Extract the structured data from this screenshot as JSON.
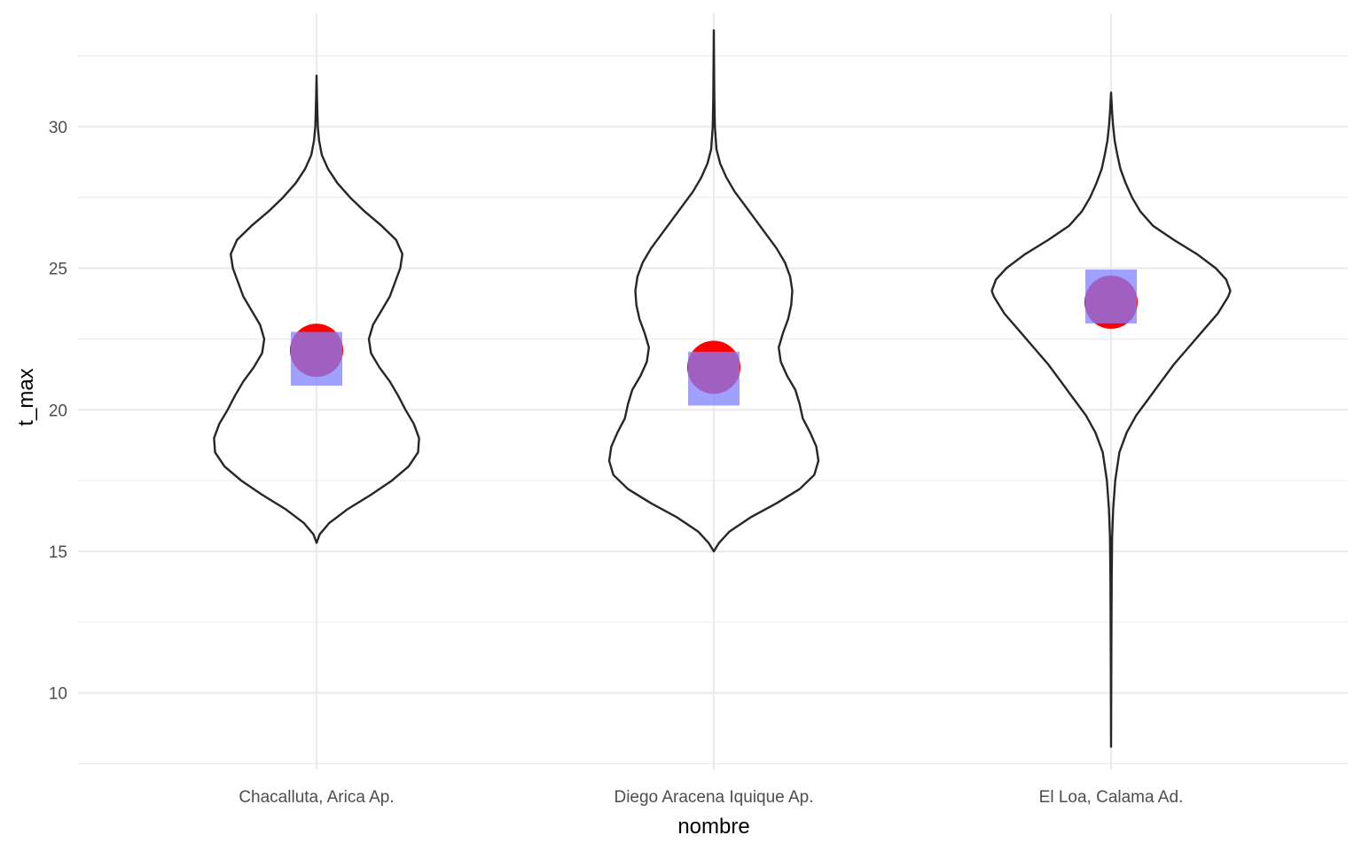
{
  "chart_data": {
    "type": "violin",
    "xlabel": "nombre",
    "ylabel": "t_max",
    "ylim": [
      7.3,
      34
    ],
    "y_ticks": [
      10,
      15,
      20,
      25,
      30
    ],
    "grid": true,
    "categories": [
      "Chacalluta, Arica Ap.",
      "Diego Aracena Iquique Ap.",
      "El Loa, Calama Ad."
    ],
    "overlay": {
      "point": {
        "shape": "circle",
        "color": "#ff0000",
        "values": [
          22.1,
          21.5,
          23.8
        ]
      },
      "box": {
        "shape": "square",
        "color": "#8080ff",
        "values": [
          21.8,
          21.1,
          24.0
        ]
      },
      "box_halfheight": 0.95
    },
    "violins": [
      {
        "name": "Chacalluta, Arica Ap.",
        "min": 15.3,
        "max": 31.8,
        "profile": [
          [
            15.3,
            0
          ],
          [
            15.6,
            0.03
          ],
          [
            16.0,
            0.12
          ],
          [
            16.5,
            0.3
          ],
          [
            17.0,
            0.52
          ],
          [
            17.5,
            0.72
          ],
          [
            18.0,
            0.88
          ],
          [
            18.5,
            0.97
          ],
          [
            19.0,
            0.98
          ],
          [
            19.5,
            0.93
          ],
          [
            20.0,
            0.85
          ],
          [
            20.5,
            0.78
          ],
          [
            21.0,
            0.7
          ],
          [
            21.5,
            0.6
          ],
          [
            22.0,
            0.52
          ],
          [
            22.5,
            0.5
          ],
          [
            23.0,
            0.54
          ],
          [
            23.5,
            0.62
          ],
          [
            24.0,
            0.7
          ],
          [
            24.5,
            0.75
          ],
          [
            25.0,
            0.8
          ],
          [
            25.5,
            0.82
          ],
          [
            26.0,
            0.76
          ],
          [
            26.5,
            0.62
          ],
          [
            27.0,
            0.46
          ],
          [
            27.5,
            0.32
          ],
          [
            28.0,
            0.2
          ],
          [
            28.5,
            0.11
          ],
          [
            29.0,
            0.05
          ],
          [
            29.5,
            0.025
          ],
          [
            30.0,
            0.012
          ],
          [
            31.0,
            0.004
          ],
          [
            31.8,
            0
          ]
        ]
      },
      {
        "name": "Diego Aracena Iquique Ap.",
        "min": 15.0,
        "max": 33.4,
        "profile": [
          [
            15.0,
            0
          ],
          [
            15.3,
            0.05
          ],
          [
            15.7,
            0.15
          ],
          [
            16.2,
            0.35
          ],
          [
            16.7,
            0.6
          ],
          [
            17.2,
            0.82
          ],
          [
            17.7,
            0.96
          ],
          [
            18.2,
            1.0
          ],
          [
            18.7,
            0.98
          ],
          [
            19.2,
            0.92
          ],
          [
            19.7,
            0.85
          ],
          [
            20.2,
            0.82
          ],
          [
            20.7,
            0.78
          ],
          [
            21.2,
            0.7
          ],
          [
            21.7,
            0.64
          ],
          [
            22.2,
            0.62
          ],
          [
            22.7,
            0.66
          ],
          [
            23.2,
            0.71
          ],
          [
            23.7,
            0.74
          ],
          [
            24.2,
            0.75
          ],
          [
            24.7,
            0.73
          ],
          [
            25.2,
            0.68
          ],
          [
            25.7,
            0.6
          ],
          [
            26.2,
            0.5
          ],
          [
            26.7,
            0.4
          ],
          [
            27.2,
            0.3
          ],
          [
            27.7,
            0.2
          ],
          [
            28.2,
            0.12
          ],
          [
            28.7,
            0.06
          ],
          [
            29.2,
            0.025
          ],
          [
            30.0,
            0.01
          ],
          [
            31.0,
            0.005
          ],
          [
            33.4,
            0
          ]
        ]
      },
      {
        "name": "El Loa, Calama Ad.",
        "min": 8.1,
        "max": 31.2,
        "profile": [
          [
            8.1,
            0
          ],
          [
            10.0,
            0.002
          ],
          [
            12.0,
            0.003
          ],
          [
            14.0,
            0.006
          ],
          [
            15.5,
            0.01
          ],
          [
            16.5,
            0.02
          ],
          [
            17.5,
            0.04
          ],
          [
            18.5,
            0.08
          ],
          [
            19.2,
            0.15
          ],
          [
            19.8,
            0.24
          ],
          [
            20.4,
            0.36
          ],
          [
            21.0,
            0.48
          ],
          [
            21.6,
            0.6
          ],
          [
            22.2,
            0.74
          ],
          [
            22.8,
            0.88
          ],
          [
            23.4,
            1.02
          ],
          [
            24.0,
            1.12
          ],
          [
            24.2,
            1.14
          ],
          [
            24.6,
            1.1
          ],
          [
            25.0,
            1.0
          ],
          [
            25.5,
            0.82
          ],
          [
            26.0,
            0.6
          ],
          [
            26.5,
            0.4
          ],
          [
            27.0,
            0.28
          ],
          [
            27.5,
            0.2
          ],
          [
            28.0,
            0.14
          ],
          [
            28.5,
            0.09
          ],
          [
            29.0,
            0.06
          ],
          [
            29.5,
            0.035
          ],
          [
            30.0,
            0.02
          ],
          [
            30.5,
            0.01
          ],
          [
            31.2,
            0
          ]
        ]
      }
    ]
  }
}
